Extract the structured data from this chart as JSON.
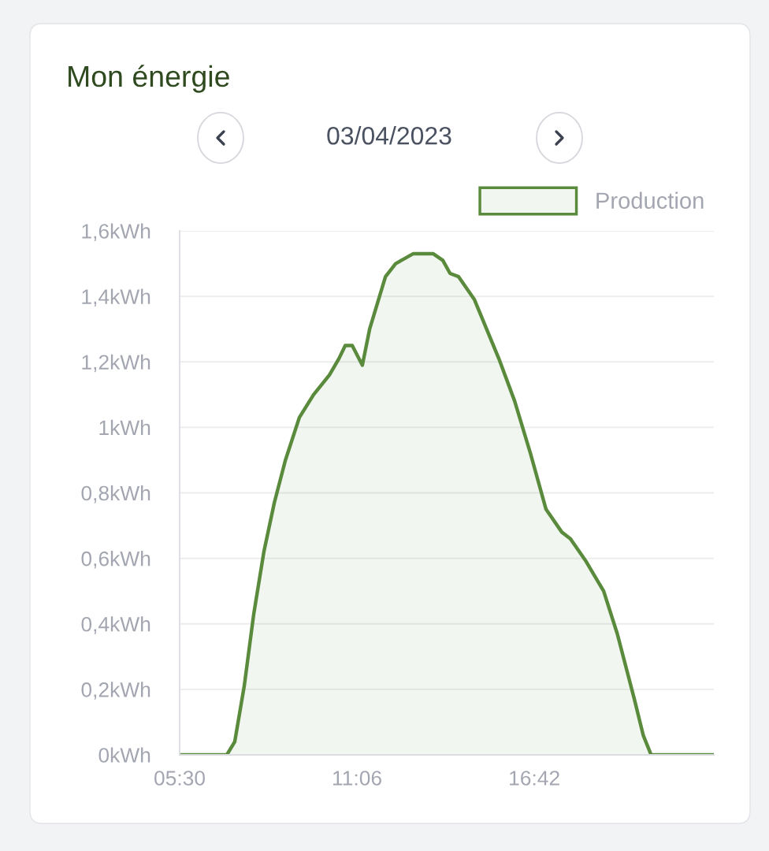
{
  "chart_data": {
    "type": "area",
    "title": "Mon énergie",
    "subtitle": "03/04/2023",
    "x": [
      5.5,
      6.99,
      7.24,
      7.54,
      7.84,
      8.16,
      8.49,
      8.84,
      9.28,
      9.73,
      10.23,
      10.53,
      10.73,
      10.95,
      11.27,
      11.5,
      12.0,
      12.32,
      12.87,
      13.51,
      13.81,
      14.04,
      14.31,
      14.81,
      15.58,
      16.08,
      16.58,
      17.07,
      17.57,
      17.84,
      18.34,
      18.89,
      19.32,
      19.86,
      20.14,
      20.39,
      22.37
    ],
    "series": [
      {
        "name": "Production",
        "color": "#5a8a3c",
        "values": [
          0,
          0,
          0.04,
          0.21,
          0.43,
          0.62,
          0.77,
          0.9,
          1.03,
          1.1,
          1.16,
          1.21,
          1.25,
          1.25,
          1.19,
          1.3,
          1.46,
          1.5,
          1.53,
          1.53,
          1.51,
          1.47,
          1.46,
          1.39,
          1.21,
          1.08,
          0.92,
          0.75,
          0.68,
          0.66,
          0.59,
          0.5,
          0.37,
          0.17,
          0.06,
          0,
          0
        ]
      }
    ],
    "xlim": [
      5.5,
      22.37
    ],
    "xticks": [
      {
        "value": 5.5,
        "label": "05:30"
      },
      {
        "value": 11.1,
        "label": "11:06"
      },
      {
        "value": 16.7,
        "label": "16:42"
      }
    ],
    "ylim": [
      0,
      1.6
    ],
    "yticks": [
      {
        "value": 0,
        "label": "0kWh"
      },
      {
        "value": 0.2,
        "label": "0,2kWh"
      },
      {
        "value": 0.4,
        "label": "0,4kWh"
      },
      {
        "value": 0.6,
        "label": "0,6kWh"
      },
      {
        "value": 0.8,
        "label": "0,8kWh"
      },
      {
        "value": 1,
        "label": "1kWh"
      },
      {
        "value": 1.2,
        "label": "1,2kWh"
      },
      {
        "value": 1.4,
        "label": "1,4kWh"
      },
      {
        "value": 1.6,
        "label": "1,6kWh"
      }
    ],
    "grid": "y",
    "legend": "top right",
    "marker": "none",
    "line_style": "solid"
  }
}
